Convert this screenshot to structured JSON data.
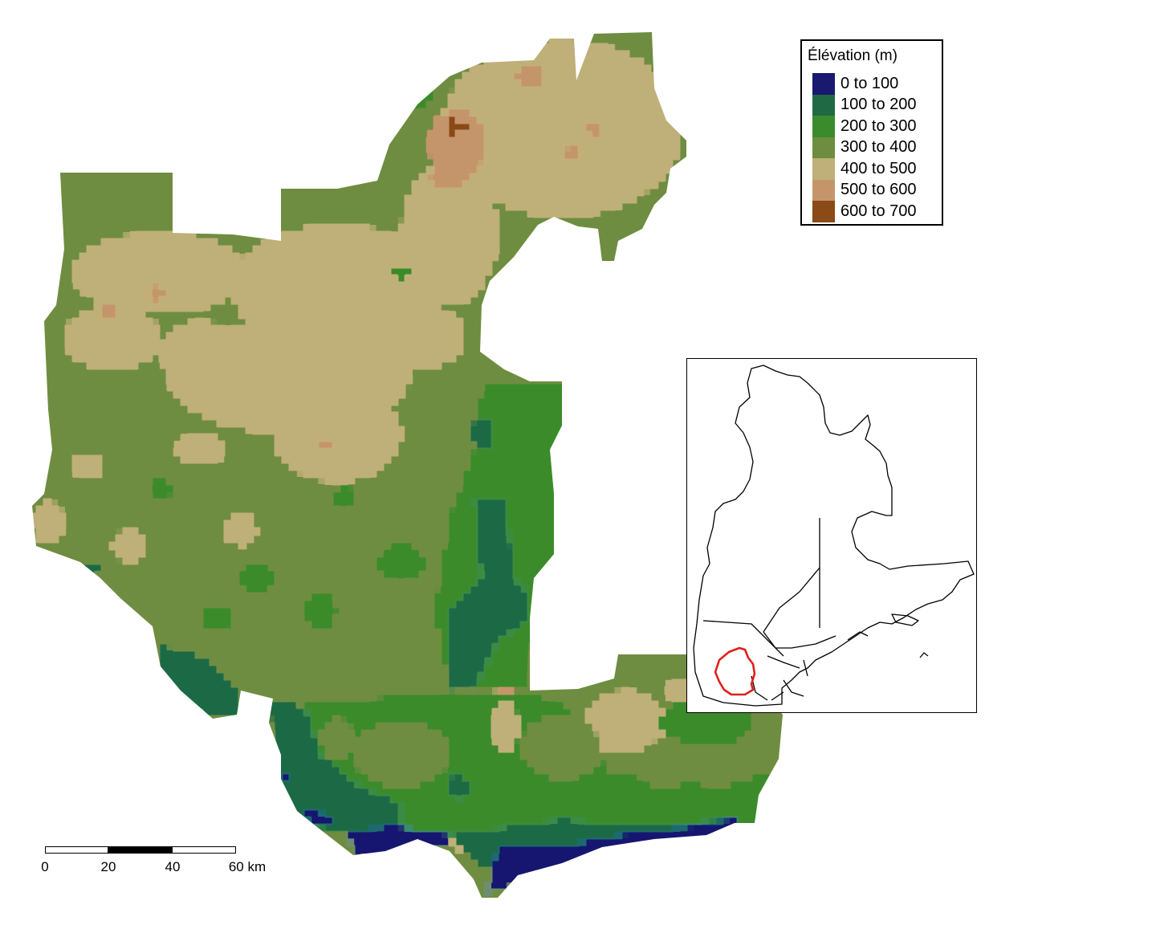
{
  "legend": {
    "title": "Élévation (m)",
    "classes": [
      {
        "label": "0 to 100",
        "color": "#191970"
      },
      {
        "label": "100 to 200",
        "color": "#1F6A44"
      },
      {
        "label": "200 to 300",
        "color": "#3A8B2C"
      },
      {
        "label": "300 to 400",
        "color": "#6E8D40"
      },
      {
        "label": "400 to 500",
        "color": "#BFAF78"
      },
      {
        "label": "500 to 600",
        "color": "#C4956A"
      },
      {
        "label": "600 to 700",
        "color": "#8B4A16"
      }
    ]
  },
  "scalebar": {
    "labels": [
      "0",
      "20",
      "40",
      "60 km"
    ],
    "unit": "km"
  },
  "inset": {
    "highlight_color": "#E0201C"
  }
}
